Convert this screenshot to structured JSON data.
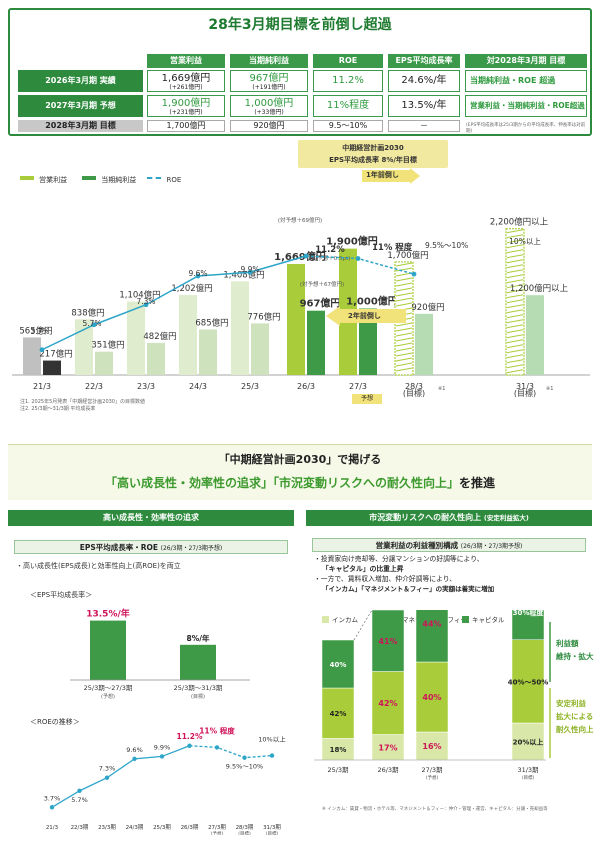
{
  "top": {
    "title": "28年3月期目標を前倒し超過",
    "headers": [
      "営業利益",
      "当期純利益",
      "ROE",
      "EPS平均成長率",
      "対2028年3月期 目標"
    ],
    "rows": [
      {
        "label": "2026年3月期 実績",
        "op": "1,669億円",
        "op_sub": "(+261億円)",
        "ni": "967億円",
        "ni_sub": "(+191億円)",
        "roe": "11.2%",
        "eps": "24.6%/年",
        "vs": "当期純利益・ROE 超過"
      },
      {
        "label": "2027年3月期 予想",
        "op": "1,900億円",
        "op_sub": "(+231億円)",
        "ni": "1,000億円",
        "ni_sub": "(+33億円)",
        "roe": "11%程度",
        "eps": "13.5%/年",
        "vs": "営業利益・当期純利益・ROE超過"
      },
      {
        "label": "2028年3月期 目標",
        "op": "1,700億円",
        "ni": "920億円",
        "roe": "9.5～10%",
        "eps": "－",
        "vs": "(EPS平均成長率は25/3期からの平均成長率、伸長率は対前期)"
      }
    ]
  },
  "chart": {
    "legend": [
      "営業利益",
      "当期純利益",
      "ROE"
    ],
    "plan_box": [
      "中期経営計画2030",
      "EPS平均成長率 8%/年目標"
    ],
    "arrow1": "1年前倒し",
    "arrow2": "2年前倒し",
    "yosou": "予想",
    "footnote1": "注1. 2025年5月発表「中期経営計画2030」の目標数値",
    "footnote2": "注2. 25/3期～31/3期 平均成長率",
    "extra": {
      "op26_sub": "(対予想＋69億円)",
      "ni26_sub": "(対予想＋67億円)",
      "roe26_sub": "(対予想＋0.5pt)",
      "roe27": "11% 程度",
      "roe28": "9.5%～10%",
      "roe31": "10%以上",
      "op31": "2,200億円以上",
      "ni31": "1,200億円以上",
      "x_target": "(目標)",
      "note_mark": "※1"
    }
  },
  "chart_data": {
    "type": "bar",
    "categories": [
      "21/3",
      "22/3",
      "23/3",
      "24/3",
      "25/3",
      "26/3",
      "27/3",
      "28/3",
      "31/3"
    ],
    "series": [
      {
        "name": "営業利益",
        "values": [
          565,
          838,
          1104,
          1202,
          1408,
          1669,
          1900,
          1700,
          2200
        ]
      },
      {
        "name": "当期純利益",
        "values": [
          217,
          351,
          482,
          685,
          776,
          967,
          1000,
          920,
          1200
        ]
      },
      {
        "name": "ROE",
        "values": [
          3.7,
          5.7,
          7.3,
          9.6,
          9.9,
          11.2,
          11,
          9.75,
          10
        ]
      }
    ],
    "op_labels": [
      "565億円",
      "838億円",
      "1,104億円",
      "1,202億円",
      "1,408億円",
      "1,669億円",
      "1,900億円",
      "1,700億円",
      "2,200億円以上"
    ],
    "ni_labels": [
      "217億円",
      "351億円",
      "482億円",
      "685億円",
      "776億円",
      "967億円",
      "1,000億円",
      "920億円",
      "1,200億円以上"
    ],
    "roe_labels": [
      "3.7%",
      "5.7%",
      "7.3%",
      "9.6%",
      "9.9%",
      "11.2%",
      "11% 程度",
      "9.5%～10%",
      "10%以上"
    ],
    "colors": {
      "op": "#a8cc3a",
      "ni": "#3f9a47",
      "roe": "#2da5c9",
      "op_past": "#dfeccd",
      "ni_past": "#cfe2be",
      "gray": "#c0c0c0",
      "black": "#333333"
    }
  },
  "bottom": {
    "headline1": "「中期経営計画2030」で掲げる",
    "headline2a": "「高い成長性・効率性の追求」",
    "headline2b": "「市況変動リスクへの耐久性向上」",
    "headline2c": "を推進",
    "left_head": "高い成長性・効率性の追求",
    "left_sub": "EPS平均成長率・ROE",
    "left_sub_note": "(26/3期・27/3期予想)",
    "left_bullet": "・高い成長性(EPS成長)と効率性向上(高ROE)を両立",
    "eps_title": "＜EPS平均成長率＞",
    "eps_bars": [
      {
        "label": "13.5%/年",
        "value": 13.5,
        "x1": "25/3期～27/3期",
        "x2": "(予想)"
      },
      {
        "label": "8%/年",
        "value": 8,
        "x1": "25/3期～31/3期",
        "x2": "(目標)"
      }
    ],
    "roe_title": "＜ROEの推移＞",
    "roe_points": [
      "3.7%",
      "5.7%",
      "7.3%",
      "9.6%",
      "9.9%",
      "11.2%",
      "11% 程度",
      "9.5%～10%",
      "10%以上"
    ],
    "roe_x": [
      "21/3",
      "22/3期",
      "23/3期",
      "24/3期",
      "25/3期",
      "26/3期",
      "27/3期",
      "28/3期",
      "31/3期"
    ],
    "roe_x_sub": [
      "",
      "",
      "",
      "",
      "",
      "",
      "(予想)",
      "(目標)",
      "(目標)"
    ],
    "right_head": "市況変動リスクへの耐久性向上",
    "right_head_note": "(安定利益拡大)",
    "right_sub": "営業利益の利益種別構成",
    "right_sub_note": "(26/3期・27/3期予想)",
    "right_bullets": [
      "・投資家向け売却等、分譲マンションの好調等により、",
      "「キャピタル」の比重上昇",
      "・一方で、賃料収入増加、仲介好調等により、",
      "「インカム」「マネジメント＆フィー」の実額は着実に増加"
    ],
    "stack_legend": [
      "インカム",
      "マネジメント＆フィー",
      "キャピタル"
    ],
    "stack_x": [
      "25/3期",
      "26/3期",
      "27/3期",
      "31/3期"
    ],
    "stack_x_sub": [
      "",
      "",
      "(予想)",
      "(目標)"
    ],
    "stack": [
      {
        "income": "18%",
        "mgmt": "42%",
        "cap": "40%"
      },
      {
        "income": "17%",
        "mgmt": "42%",
        "cap": "41%"
      },
      {
        "income": "16%",
        "mgmt": "40%",
        "cap": "44%"
      },
      {
        "income": "20%以上",
        "mgmt": "40%～50%",
        "cap": "30%程度"
      }
    ],
    "stack_side1": [
      "利益額",
      "維持・拡大"
    ],
    "stack_side2": [
      "安定利益",
      "拡大による",
      "耐久性向上"
    ],
    "stack_note": "※ インカム：賃貸・物流・ホテル等、マネジメント＆フィー：仲介・管理・運営、キャピタル：分譲・売却益等"
  }
}
